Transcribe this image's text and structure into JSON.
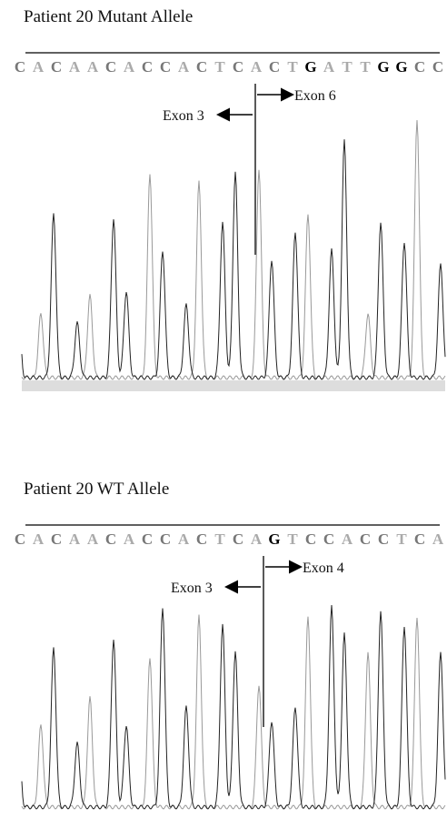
{
  "panels": [
    {
      "title": "Patient 20 Mutant Allele",
      "sequence": [
        "C",
        "A",
        "C",
        "A",
        "A",
        "C",
        "A",
        "C",
        "C",
        "A",
        "C",
        "T",
        "C",
        "A",
        "C",
        "T",
        "G",
        "A",
        "T",
        "T",
        "G",
        "G",
        "C",
        "C"
      ],
      "left_label": "Exon 3",
      "right_label": "Exon 6"
    },
    {
      "title": "Patient 20 WT Allele",
      "sequence": [
        "C",
        "A",
        "C",
        "A",
        "A",
        "C",
        "A",
        "C",
        "C",
        "A",
        "C",
        "T",
        "C",
        "A",
        "G",
        "T",
        "C",
        "C",
        "A",
        "C",
        "C",
        "T",
        "C",
        "A"
      ],
      "left_label": "Exon 3",
      "right_label": "Exon 4"
    }
  ]
}
